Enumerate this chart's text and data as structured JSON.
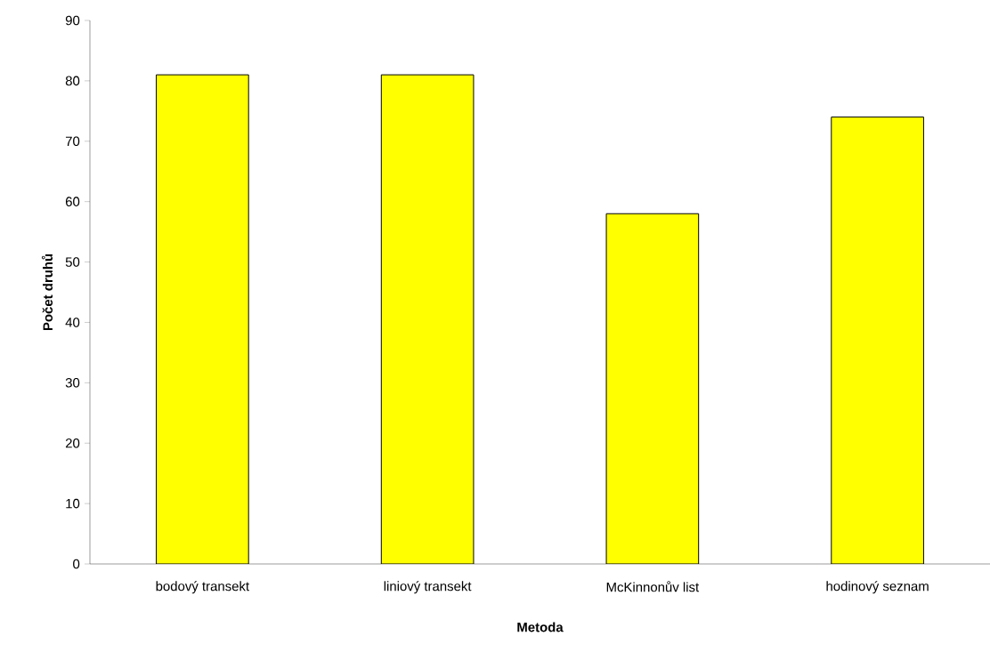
{
  "chart_data": {
    "type": "bar",
    "xlabel": "Metoda",
    "ylabel": "Počet druhů",
    "categories": [
      "bodový transekt",
      "liniový transekt",
      "McKinnonův list",
      "hodinový seznam"
    ],
    "values": [
      81,
      81,
      58,
      74
    ],
    "color": "#ffff00",
    "ylim": [
      0,
      90
    ],
    "yticks": [
      0,
      10,
      20,
      30,
      40,
      50,
      60,
      70,
      80,
      90
    ],
    "grid": false
  }
}
